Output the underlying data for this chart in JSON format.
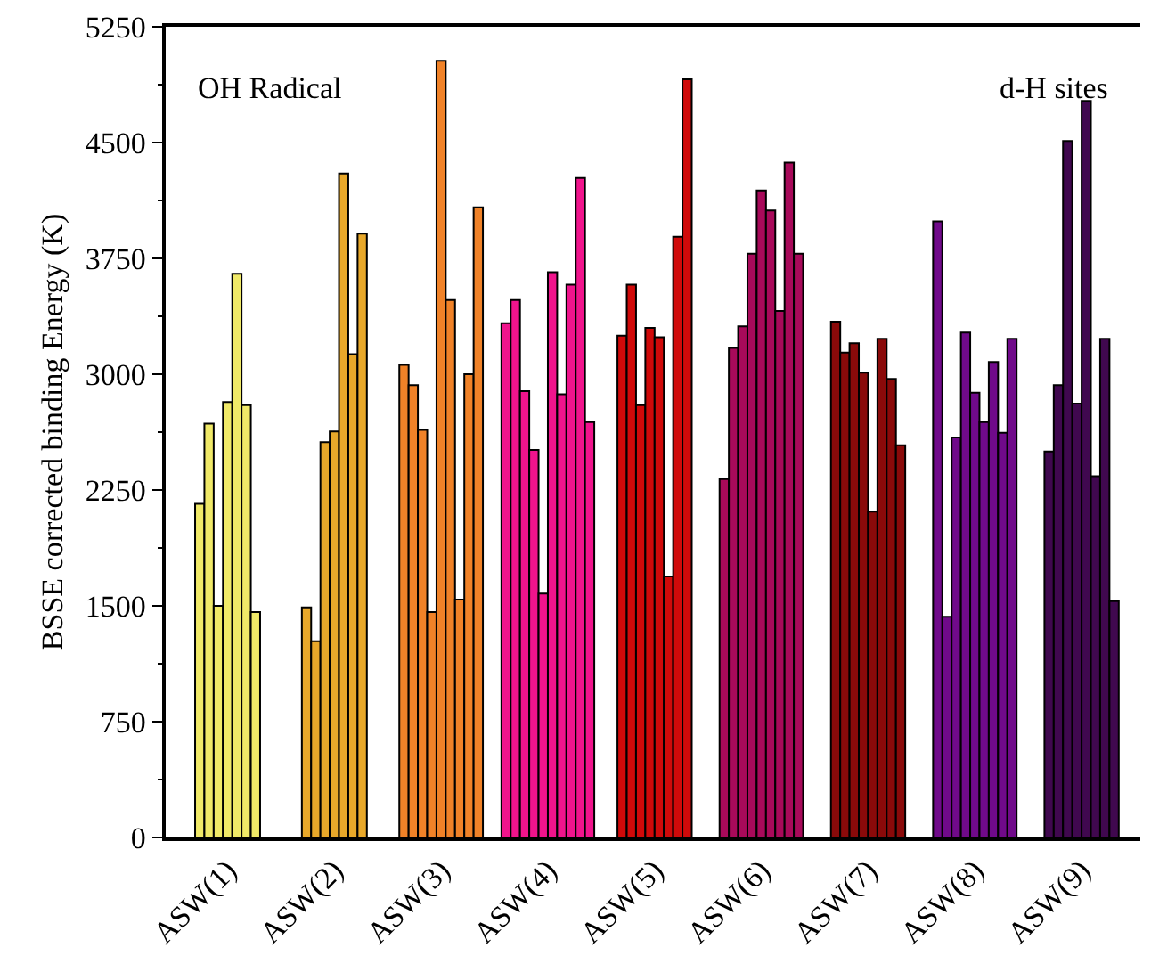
{
  "chart_data": {
    "type": "bar",
    "ylabel": "BSSE corrected binding Energy (K)",
    "categories": [
      "ASW(1)",
      "ASW(2)",
      "ASW(3)",
      "ASW(4)",
      "ASW(5)",
      "ASW(6)",
      "ASW(7)",
      "ASW(8)",
      "ASW(9)"
    ],
    "series": [
      {
        "colors": [
          "#f0e968",
          "#e8a82a",
          "#f08228",
          "#f0148c",
          "#d00a0a",
          "#a80a5a",
          "#8a0a0a",
          "#700a8a",
          "#40084f"
        ],
        "values": [
          2160,
          1490,
          3060,
          3330,
          3250,
          2320,
          3340,
          3990,
          2500
        ]
      },
      {
        "colors": [
          "#f0e968",
          "#e8a82a",
          "#f08228",
          "#f0148c",
          "#d00a0a",
          "#a80a5a",
          "#8a0a0a",
          "#700a8a",
          "#40084f"
        ],
        "values": [
          2680,
          1270,
          2930,
          3480,
          3580,
          3170,
          3140,
          1430,
          2930
        ]
      },
      {
        "colors": [
          "#f0e968",
          "#e8a82a",
          "#f08228",
          "#f0148c",
          "#d00a0a",
          "#a80a5a",
          "#8a0a0a",
          "#700a8a",
          "#40084f"
        ],
        "values": [
          1500,
          2560,
          2640,
          2890,
          2800,
          3310,
          3200,
          2590,
          4510
        ]
      },
      {
        "colors": [
          "#f0e968",
          "#e8a82a",
          "#f08228",
          "#f0148c",
          "#d00a0a",
          "#a80a5a",
          "#8a0a0a",
          "#700a8a",
          "#40084f"
        ],
        "values": [
          2820,
          2630,
          1460,
          2510,
          3300,
          3780,
          3010,
          3270,
          2810
        ]
      },
      {
        "colors": [
          "#f0e968",
          "#e8a82a",
          "#f08228",
          "#f0148c",
          "#d00a0a",
          "#a80a5a",
          "#8a0a0a",
          "#700a8a",
          "#40084f"
        ],
        "values": [
          3650,
          4300,
          5030,
          1580,
          3240,
          4190,
          2110,
          2880,
          4770
        ]
      },
      {
        "colors": [
          "#f0e968",
          "#e8a82a",
          "#f08228",
          "#f0148c",
          "#d00a0a",
          "#a80a5a",
          "#8a0a0a",
          "#700a8a",
          "#40084f"
        ],
        "values": [
          2800,
          3130,
          3480,
          3660,
          1690,
          4060,
          3230,
          2690,
          2340
        ]
      },
      {
        "colors": [
          "#f0e968",
          "#e8a82a",
          "#f08228",
          "#f0148c",
          "#d00a0a",
          "#a80a5a",
          "#8a0a0a",
          "#700a8a",
          "#40084f"
        ],
        "values": [
          1460,
          3910,
          1540,
          2870,
          3890,
          3410,
          2970,
          3080,
          3230
        ]
      },
      {
        "colors": [
          null,
          null,
          "#f08228",
          "#f0148c",
          "#d00a0a",
          "#a80a5a",
          "#8a0a0a",
          "#700a8a",
          "#40084f"
        ],
        "values": [
          null,
          null,
          3000,
          3580,
          4910,
          4370,
          2540,
          2620,
          1530
        ]
      },
      {
        "colors": [
          null,
          null,
          "#f08228",
          "#f0148c",
          null,
          "#a80a5a",
          null,
          "#700a8a",
          null
        ],
        "values": [
          null,
          null,
          4080,
          4270,
          null,
          3780,
          null,
          3230,
          null
        ]
      },
      {
        "colors": [
          null,
          null,
          null,
          "#f0148c",
          null,
          null,
          null,
          null,
          null
        ],
        "values": [
          null,
          null,
          null,
          2690,
          null,
          null,
          null,
          null,
          null
        ]
      }
    ],
    "ylim": [
      0,
      5250
    ],
    "yticks": [
      0,
      750,
      1500,
      2250,
      3000,
      3750,
      4500,
      5250
    ],
    "annotations": [
      "OH Radical",
      "d-H sites"
    ],
    "grid": false
  }
}
